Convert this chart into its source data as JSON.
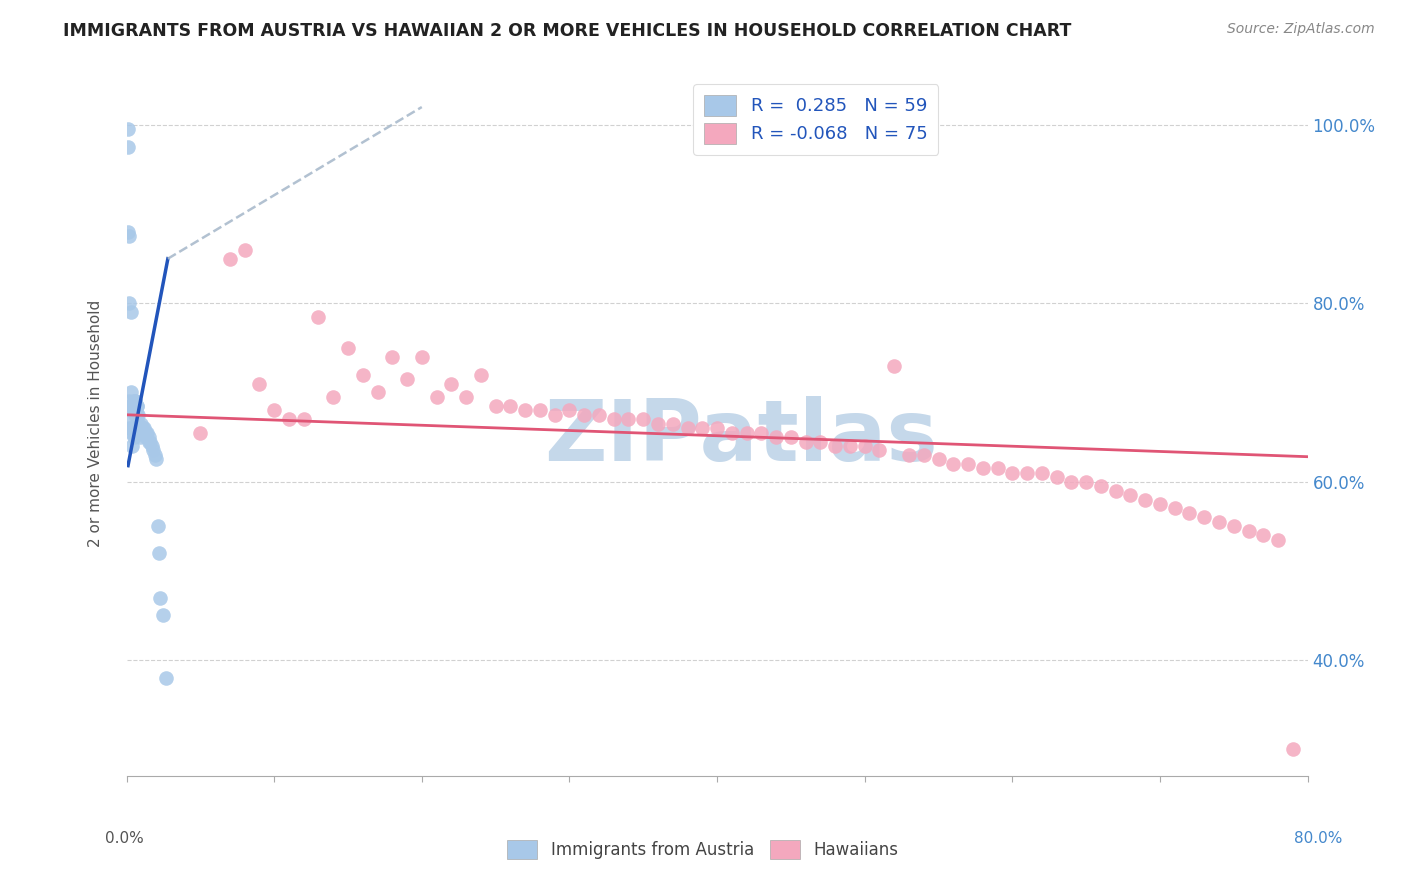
{
  "title": "IMMIGRANTS FROM AUSTRIA VS HAWAIIAN 2 OR MORE VEHICLES IN HOUSEHOLD CORRELATION CHART",
  "source": "Source: ZipAtlas.com",
  "ylabel": "2 or more Vehicles in Household",
  "yticks_labels": [
    "40.0%",
    "60.0%",
    "80.0%",
    "100.0%"
  ],
  "ytick_vals": [
    0.4,
    0.6,
    0.8,
    1.0
  ],
  "xlim": [
    0.0,
    0.8
  ],
  "ylim": [
    0.27,
    1.06
  ],
  "color_blue": "#a8c8e8",
  "color_pink": "#f4a8be",
  "line_blue": "#2255bb",
  "line_pink": "#e05575",
  "line_dash": "#aabbcc",
  "watermark_text": "ZIPatlas",
  "watermark_color": "#c5d8ea",
  "austria_x": [
    0.001,
    0.001,
    0.002,
    0.002,
    0.002,
    0.003,
    0.003,
    0.003,
    0.003,
    0.004,
    0.004,
    0.004,
    0.005,
    0.005,
    0.005,
    0.005,
    0.006,
    0.006,
    0.006,
    0.006,
    0.007,
    0.007,
    0.007,
    0.008,
    0.008,
    0.008,
    0.009,
    0.009,
    0.01,
    0.01,
    0.01,
    0.011,
    0.011,
    0.012,
    0.012,
    0.013,
    0.013,
    0.014,
    0.015,
    0.015,
    0.016,
    0.017,
    0.018,
    0.019,
    0.02,
    0.021,
    0.022,
    0.023,
    0.025,
    0.027,
    0.001,
    0.002,
    0.003,
    0.004,
    0.005,
    0.006,
    0.007,
    0.008,
    0.009
  ],
  "austria_y": [
    0.995,
    0.88,
    0.8,
    0.66,
    0.69,
    0.685,
    0.7,
    0.68,
    0.67,
    0.66,
    0.655,
    0.64,
    0.69,
    0.685,
    0.66,
    0.65,
    0.69,
    0.675,
    0.66,
    0.655,
    0.685,
    0.675,
    0.66,
    0.675,
    0.665,
    0.655,
    0.66,
    0.65,
    0.665,
    0.66,
    0.655,
    0.66,
    0.655,
    0.66,
    0.655,
    0.655,
    0.65,
    0.655,
    0.65,
    0.645,
    0.645,
    0.64,
    0.635,
    0.63,
    0.625,
    0.55,
    0.52,
    0.47,
    0.45,
    0.38,
    0.975,
    0.875,
    0.79,
    0.685,
    0.68,
    0.69,
    0.685,
    0.665,
    0.66
  ],
  "hawaiian_x": [
    0.05,
    0.07,
    0.08,
    0.09,
    0.1,
    0.11,
    0.12,
    0.13,
    0.14,
    0.15,
    0.16,
    0.17,
    0.18,
    0.19,
    0.2,
    0.21,
    0.22,
    0.23,
    0.24,
    0.25,
    0.26,
    0.27,
    0.28,
    0.29,
    0.3,
    0.31,
    0.32,
    0.33,
    0.34,
    0.35,
    0.36,
    0.37,
    0.38,
    0.39,
    0.4,
    0.41,
    0.42,
    0.43,
    0.44,
    0.45,
    0.46,
    0.47,
    0.48,
    0.49,
    0.5,
    0.51,
    0.52,
    0.53,
    0.54,
    0.55,
    0.56,
    0.57,
    0.58,
    0.59,
    0.6,
    0.61,
    0.62,
    0.63,
    0.64,
    0.65,
    0.66,
    0.67,
    0.68,
    0.69,
    0.7,
    0.71,
    0.72,
    0.73,
    0.74,
    0.75,
    0.76,
    0.77,
    0.78,
    0.79
  ],
  "hawaiian_y": [
    0.655,
    0.85,
    0.86,
    0.71,
    0.68,
    0.67,
    0.67,
    0.785,
    0.695,
    0.75,
    0.72,
    0.7,
    0.74,
    0.715,
    0.74,
    0.695,
    0.71,
    0.695,
    0.72,
    0.685,
    0.685,
    0.68,
    0.68,
    0.675,
    0.68,
    0.675,
    0.675,
    0.67,
    0.67,
    0.67,
    0.665,
    0.665,
    0.66,
    0.66,
    0.66,
    0.655,
    0.655,
    0.655,
    0.65,
    0.65,
    0.645,
    0.645,
    0.64,
    0.64,
    0.64,
    0.635,
    0.73,
    0.63,
    0.63,
    0.625,
    0.62,
    0.62,
    0.615,
    0.615,
    0.61,
    0.61,
    0.61,
    0.605,
    0.6,
    0.6,
    0.595,
    0.59,
    0.585,
    0.58,
    0.575,
    0.57,
    0.565,
    0.56,
    0.555,
    0.55,
    0.545,
    0.54,
    0.535,
    0.3
  ],
  "blue_trend_x": [
    0.001,
    0.028
  ],
  "blue_trend_y": [
    0.618,
    0.85
  ],
  "dash_trend_x": [
    0.028,
    0.2
  ],
  "dash_trend_y": [
    0.85,
    1.02
  ],
  "pink_trend_x": [
    0.0,
    0.8
  ],
  "pink_trend_y": [
    0.675,
    0.628
  ]
}
